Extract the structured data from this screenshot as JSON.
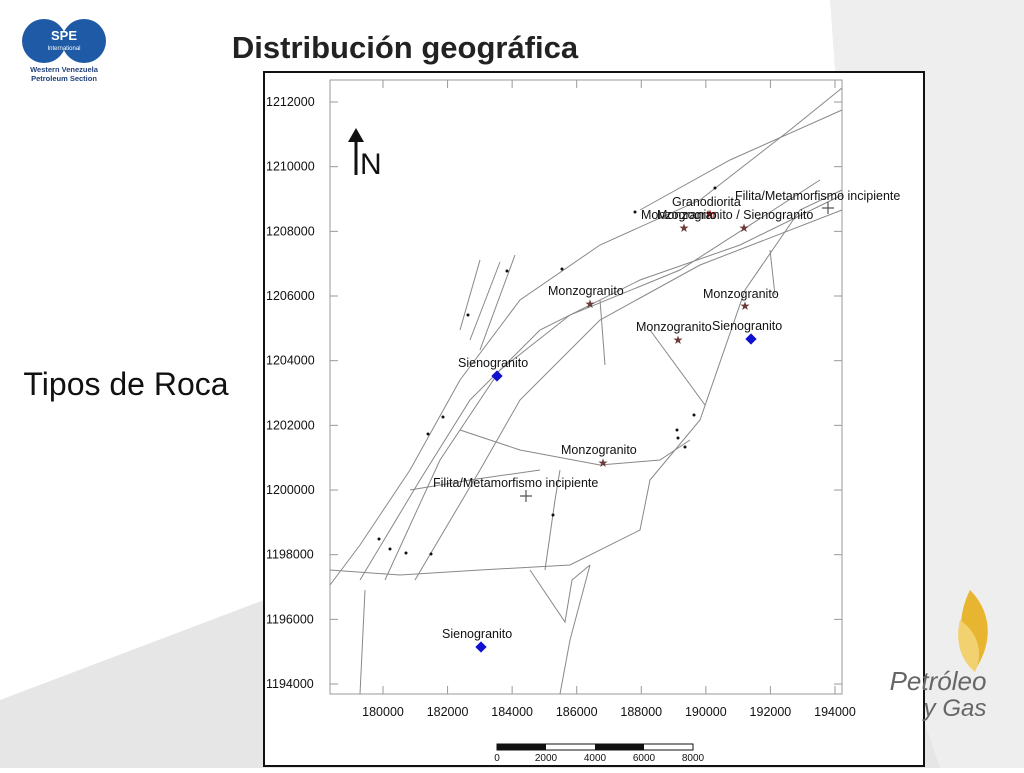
{
  "header": {
    "title": "Distribución geográfica",
    "logo": {
      "name": "SPE",
      "subtitle": "International",
      "org": [
        "Western Venezuela",
        "Petroleum Section"
      ]
    }
  },
  "side_label": "Tipos de Roca",
  "map": {
    "north": "N",
    "yticks": [
      1212000,
      1210000,
      1208000,
      1206000,
      1204000,
      1202000,
      1200000,
      1198000,
      1196000,
      1194000
    ],
    "xticks": [
      180000,
      182000,
      184000,
      186000,
      188000,
      190000,
      192000,
      194000
    ],
    "labels": [
      "Granodiorita",
      "Monzogranito",
      "Monzogranito / Sienogranito",
      "Filita/Metamorfismo incipiente",
      "Monzogranito",
      "Monzogranito",
      "Monzogranito",
      "Sienogranito",
      "Sienogranito",
      "Monzogranito",
      "Filita/Metamorfismo incipiente",
      "Sienogranito"
    ],
    "scale_bar": [
      0,
      2000,
      4000,
      6000,
      8000
    ]
  },
  "footer_logo": [
    "Petróleo",
    "y Gas"
  ]
}
